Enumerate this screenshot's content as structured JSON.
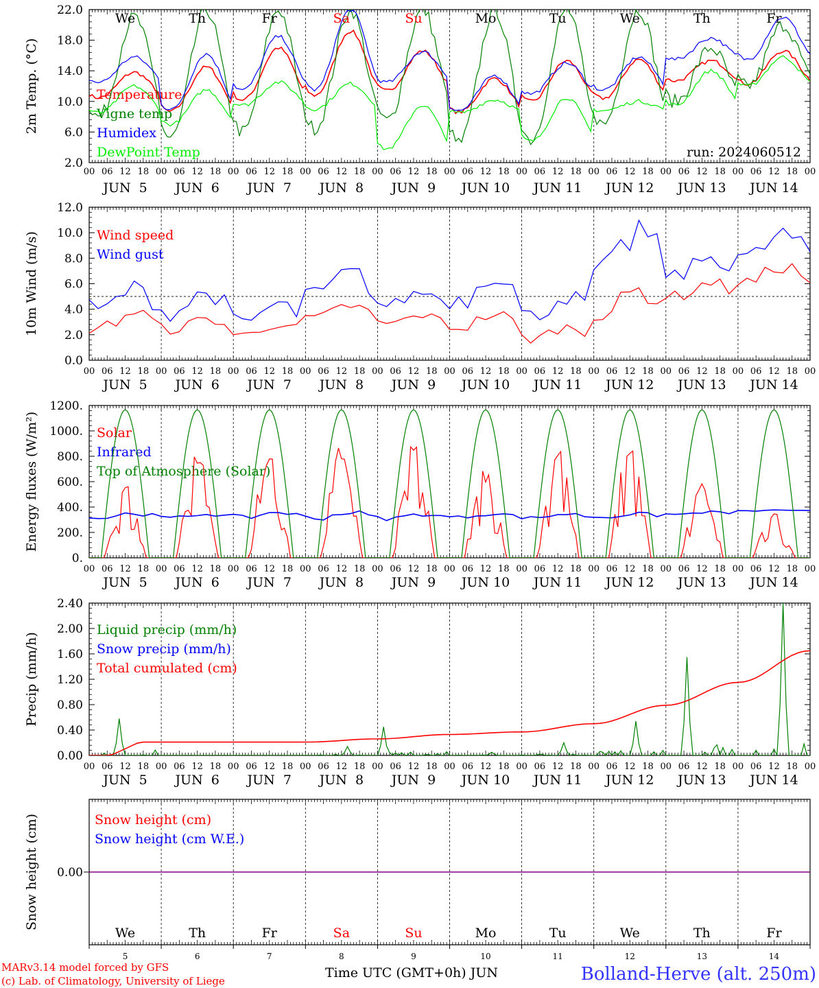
{
  "weekdays": [
    {
      "label": "We",
      "color": "#000000"
    },
    {
      "label": "Th",
      "color": "#000000"
    },
    {
      "label": "Fr",
      "color": "#000000"
    },
    {
      "label": "Sa",
      "color": "#ff0000"
    },
    {
      "label": "Su",
      "color": "#ff0000"
    },
    {
      "label": "Mo",
      "color": "#000000"
    },
    {
      "label": "Tu",
      "color": "#000000"
    },
    {
      "label": "We",
      "color": "#000000"
    },
    {
      "label": "Th",
      "color": "#000000"
    },
    {
      "label": "Fr",
      "color": "#000000"
    }
  ],
  "dates": [
    "JUN  5",
    "JUN  6",
    "JUN  7",
    "JUN  8",
    "JUN  9",
    "JUN 10",
    "JUN 11",
    "JUN 12",
    "JUN 13",
    "JUN 14"
  ],
  "hour_labels": [
    "00",
    "06",
    "12",
    "18"
  ],
  "bottom_day_numbers": [
    "5",
    "6",
    "7",
    "8",
    "9",
    "10",
    "11",
    "12",
    "13",
    "14"
  ],
  "footer": {
    "model": "MARv3.14 model forced by GFS",
    "lab": "(c) Lab. of Climatology, University of Liege",
    "xlabel": "Time UTC (GMT+0h) JUN",
    "station": "Bolland-Herve (alt. 250m)"
  },
  "chart_data": [
    {
      "type": "line",
      "ylabel": "2m Temp. (°C)",
      "ylim": [
        2,
        22
      ],
      "yticks": [
        "2.0",
        "6.0",
        "10.0",
        "14.0",
        "18.0",
        "22.0"
      ],
      "annotation": "run: 2024060512",
      "series": [
        {
          "name": "Temperature",
          "color": "#ff0000",
          "pattern": "daily",
          "min": [
            10.5,
            8.7,
            10.2,
            10.8,
            11.4,
            8.6,
            10.0,
            10.4,
            12.7,
            12.3
          ],
          "max": [
            13.8,
            14.5,
            17.0,
            19.2,
            16.6,
            13.0,
            15.3,
            15.5,
            15.3,
            16.6
          ]
        },
        {
          "name": "Vigne temp",
          "color": "#008000",
          "pattern": "daily",
          "min": [
            8.0,
            5.2,
            6.0,
            6.5,
            7.5,
            4.6,
            5.0,
            7.0,
            10.0,
            12.0
          ],
          "max": [
            21.0,
            22.0,
            22.0,
            22.0,
            22.0,
            22.0,
            22.0,
            22.0,
            17.0,
            20.0
          ]
        },
        {
          "name": "Humidex",
          "color": "#0000ff",
          "pattern": "daily",
          "min": [
            12.5,
            8.9,
            11.5,
            11.5,
            12.5,
            8.8,
            11.0,
            11.5,
            15.5,
            15.5
          ],
          "max": [
            15.8,
            16.2,
            18.5,
            22.0,
            16.5,
            13.4,
            15.0,
            15.8,
            18.3,
            21.0
          ]
        },
        {
          "name": "DewPoint Temp",
          "color": "#00ee00",
          "pattern": "daily",
          "min": [
            8.5,
            7.0,
            9.5,
            9.0,
            3.8,
            8.5,
            4.8,
            8.8,
            9.5,
            12.0
          ],
          "max": [
            12.0,
            11.5,
            12.5,
            12.3,
            9.5,
            10.2,
            10.5,
            10.0,
            14.0,
            15.8
          ]
        }
      ]
    },
    {
      "type": "line",
      "ylabel": "10m Wind (m/s)",
      "ylim": [
        0,
        12
      ],
      "yticks": [
        "0.0",
        "2.0",
        "4.0",
        "6.0",
        "8.0",
        "10.0",
        "12.0"
      ],
      "series": [
        {
          "name": "Wind speed",
          "color": "#ff0000",
          "pattern": "noise",
          "min": [
            1.0,
            1.5,
            0.8,
            2.0,
            2.2,
            1.4,
            0.7,
            1.7,
            3.8,
            4.6
          ],
          "max": [
            4.4,
            3.6,
            3.4,
            4.8,
            3.8,
            4.1,
            3.0,
            6.3,
            6.6,
            8.0
          ]
        },
        {
          "name": "Wind gust",
          "color": "#0000ff",
          "pattern": "noise",
          "min": [
            2.0,
            2.0,
            1.4,
            3.0,
            3.2,
            2.2,
            1.6,
            2.4,
            5.0,
            6.0
          ],
          "max": [
            6.4,
            6.0,
            5.0,
            7.7,
            5.8,
            8.0,
            5.8,
            11.9,
            8.8,
            10.7
          ]
        }
      ],
      "reference_line": 5
    },
    {
      "type": "line",
      "ylabel": "Energy fluxes (W/m²)",
      "ylim": [
        0,
        1200
      ],
      "yticks": [
        "0.",
        "200.",
        "400.",
        "600.",
        "800.",
        "1000.",
        "1200."
      ],
      "series": [
        {
          "name": "Solar",
          "color": "#ff0000",
          "pattern": "solar",
          "peaks": [
            570,
            860,
            850,
            880,
            900,
            700,
            860,
            880,
            600,
            350
          ]
        },
        {
          "name": "Infrared",
          "color": "#0000ff",
          "pattern": "noise",
          "min": [
            270,
            280,
            270,
            260,
            270,
            290,
            280,
            290,
            320,
            360
          ],
          "max": [
            370,
            360,
            380,
            380,
            360,
            360,
            360,
            360,
            370,
            380
          ]
        },
        {
          "name": "Top of Atmosphere (Solar)",
          "color": "#008000",
          "pattern": "toa",
          "peaks": [
            1165,
            1165,
            1165,
            1165,
            1165,
            1165,
            1165,
            1165,
            1165,
            1165
          ]
        }
      ]
    },
    {
      "type": "line",
      "ylabel": "Precip (mm/h)",
      "ylim": [
        0,
        2.4
      ],
      "yticks": [
        "0.00",
        "0.40",
        "0.80",
        "1.20",
        "1.60",
        "2.00",
        "2.40"
      ],
      "series": [
        {
          "name": "Liquid precip (mm/h)",
          "color": "#008000",
          "pattern": "rain",
          "peaks": [
            0.58,
            0.0,
            0.0,
            0.14,
            0.45,
            0.05,
            0.2,
            0.54,
            1.55,
            2.4
          ]
        },
        {
          "name": "Snow precip (mm/h)",
          "color": "#0000ff",
          "pattern": "none"
        },
        {
          "name": "Total cumulated (cm)",
          "color": "#ff0000",
          "pattern": "cumulative",
          "end_of_day": [
            0.21,
            0.21,
            0.21,
            0.26,
            0.33,
            0.37,
            0.5,
            0.79,
            1.15,
            1.65
          ]
        }
      ]
    },
    {
      "type": "line",
      "ylabel": "Snow height (cm)",
      "yticks": [
        "0.00"
      ],
      "series": [
        {
          "name": "Snow height (cm)",
          "color": "#ff0000",
          "pattern": "flat"
        },
        {
          "name": "Snow height (cm W.E.)",
          "color": "#0000ff",
          "pattern": "flat"
        }
      ]
    }
  ]
}
